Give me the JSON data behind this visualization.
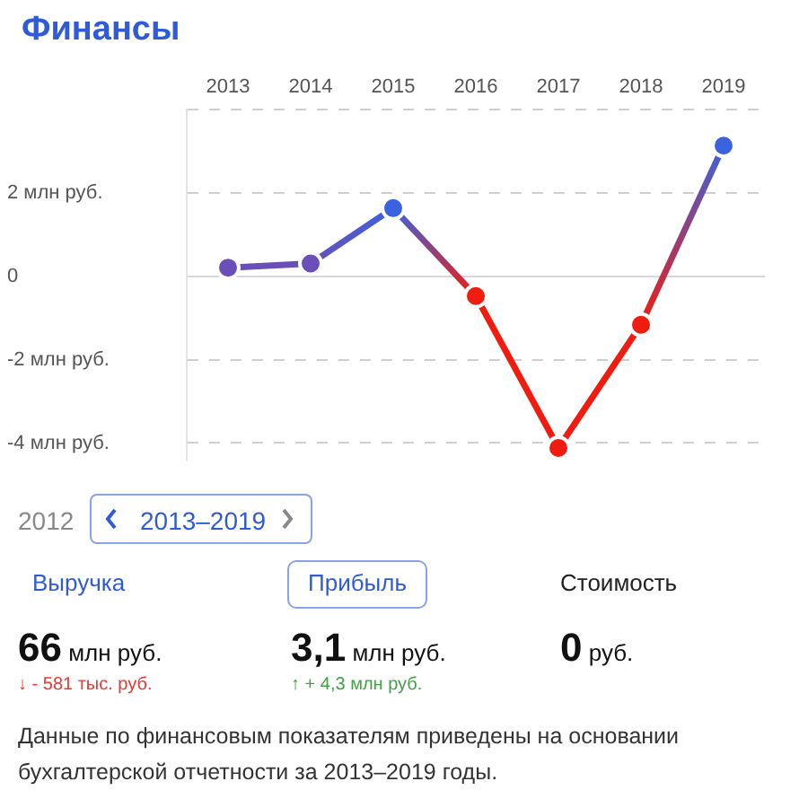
{
  "chart_data": {
    "type": "line",
    "title": "Финансы",
    "categories": [
      "2013",
      "2014",
      "2015",
      "2016",
      "2017",
      "2018",
      "2019"
    ],
    "series": [
      {
        "values": [
          0.21,
          0.31,
          1.64,
          -0.47,
          -4.12,
          -1.16,
          3.14
        ],
        "colors": [
          "#6a4fb8",
          "#6a4fb8",
          "#3b63e0",
          "#f01c10",
          "#f01c10",
          "#f01c10",
          "#3b63e0"
        ]
      }
    ],
    "ylim": [
      -4.4,
      4
    ],
    "yticks": [
      {
        "value": -4,
        "label": "-4 млн руб."
      },
      {
        "value": -2,
        "label": "-2 млн руб."
      },
      0,
      {
        "value": 2,
        "label": "2 млн руб."
      },
      {
        "value": 4,
        "label": null
      }
    ],
    "grid": "y",
    "legend": false,
    "marker": "circle",
    "line_style": "solid",
    "annotations": [
      "2012",
      "2013–2019",
      "Выручка",
      "Прибыль",
      "Стоимость",
      "66 млн руб.",
      "3,1 млн руб.",
      "0 руб.",
      "↓ - 581 тыс. руб.",
      "↑ + 4,3 млн руб.",
      "Данные по финансовым показателям приведены на основании бухгалтерской отчетности за 2013–2019 годы."
    ]
  }
}
